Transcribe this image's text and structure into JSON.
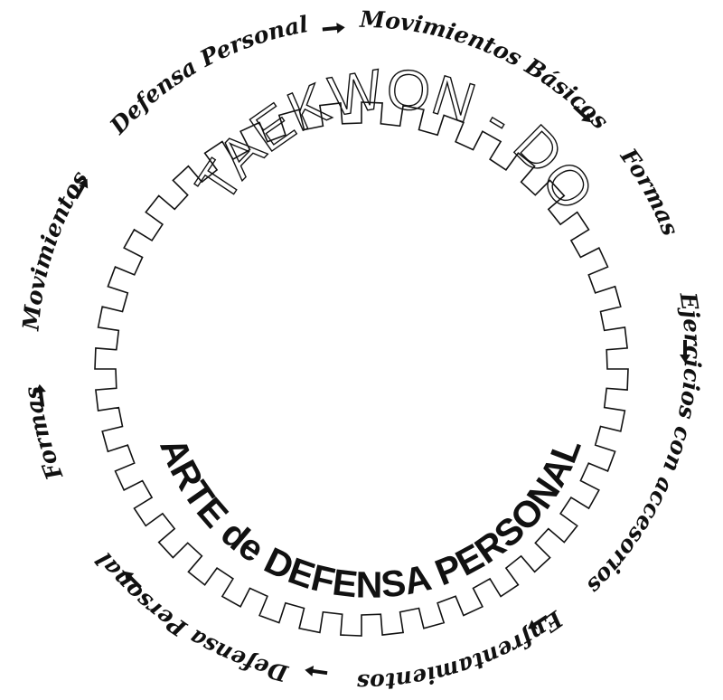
{
  "title": "TAEKWON - DO",
  "subtitle": "ARTE de DEFENSA PERSONAL",
  "cycle": [
    {
      "label": "Movimientos Básicos"
    },
    {
      "label": "Formas"
    },
    {
      "label": "Ejercicios con accesorios"
    },
    {
      "label": "Enfrentamientos"
    },
    {
      "label": "Defensa Personal"
    },
    {
      "label": "Formas"
    },
    {
      "label": "Movimientos"
    },
    {
      "label": "Defensa Personal"
    }
  ],
  "colors": {
    "ink": "#111111",
    "background": "#ffffff"
  },
  "icons": {
    "arrow": "arrow-right-icon"
  }
}
